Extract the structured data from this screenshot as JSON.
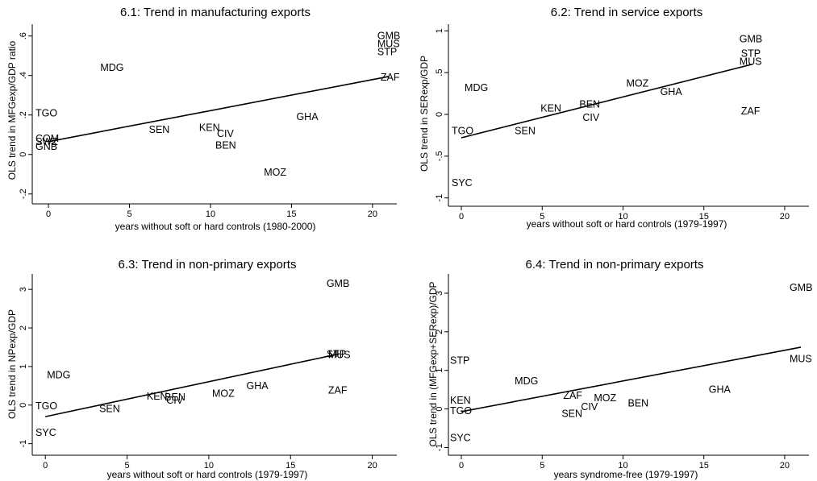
{
  "chart_data": [
    {
      "type": "scatter",
      "title": "6.1: Trend in manufacturing exports",
      "xlabel": "years without soft or hard controls (1980-2000)",
      "ylabel": "OLS trend in MFGexp/GDP ratio",
      "xlim": [
        -1,
        21.5
      ],
      "ylim": [
        -0.25,
        0.66
      ],
      "xticks": [
        {
          "v": 0,
          "label": "0"
        },
        {
          "v": 5,
          "label": "5"
        },
        {
          "v": 10,
          "label": "10"
        },
        {
          "v": 15,
          "label": "15"
        },
        {
          "v": 20,
          "label": "20"
        }
      ],
      "yticks": [
        {
          "v": -0.2,
          "label": "-.2"
        },
        {
          "v": 0,
          "label": "0"
        },
        {
          "v": 0.2,
          "label": ".2"
        },
        {
          "v": 0.4,
          "label": ".4"
        },
        {
          "v": 0.6,
          "label": ".6"
        }
      ],
      "points": [
        {
          "label": "TGO",
          "x": -0.8,
          "y": 0.21
        },
        {
          "label": "COM",
          "x": -0.8,
          "y": 0.08
        },
        {
          "label": "SWZ",
          "x": -0.8,
          "y": 0.065
        },
        {
          "label": "GNB",
          "x": -0.8,
          "y": 0.04
        },
        {
          "label": "MDG",
          "x": 3.2,
          "y": 0.44
        },
        {
          "label": "SEN",
          "x": 6.2,
          "y": 0.125
        },
        {
          "label": "KEN",
          "x": 9.3,
          "y": 0.135
        },
        {
          "label": "CIV",
          "x": 10.4,
          "y": 0.105
        },
        {
          "label": "BEN",
          "x": 10.3,
          "y": 0.045
        },
        {
          "label": "MOZ",
          "x": 13.3,
          "y": -0.09
        },
        {
          "label": "GHA",
          "x": 15.3,
          "y": 0.19
        },
        {
          "label": "GMB",
          "x": 20.3,
          "y": 0.6
        },
        {
          "label": "MUS",
          "x": 20.3,
          "y": 0.56
        },
        {
          "label": "STP",
          "x": 20.3,
          "y": 0.52
        },
        {
          "label": "ZAF",
          "x": 20.5,
          "y": 0.39
        }
      ],
      "fit": {
        "x": [
          0,
          21
        ],
        "y": [
          0.065,
          0.395
        ]
      }
    },
    {
      "type": "scatter",
      "title": "6.2: Trend in service exports",
      "xlabel": "years without soft or hard controls (1979-1997)",
      "ylabel": "OLS trend in SERexp/GDP",
      "xlim": [
        -0.8,
        21.5
      ],
      "ylim": [
        -1.1,
        1.08
      ],
      "xticks": [
        {
          "v": 0,
          "label": "0"
        },
        {
          "v": 5,
          "label": "5"
        },
        {
          "v": 10,
          "label": "10"
        },
        {
          "v": 15,
          "label": "15"
        },
        {
          "v": 20,
          "label": "20"
        }
      ],
      "yticks": [
        {
          "v": -1,
          "label": "-1"
        },
        {
          "v": -0.5,
          "label": "-.5"
        },
        {
          "v": 0,
          "label": "0"
        },
        {
          "v": 0.5,
          "label": ".5"
        },
        {
          "v": 1,
          "label": "1"
        }
      ],
      "points": [
        {
          "label": "MDG",
          "x": 0.2,
          "y": 0.32
        },
        {
          "label": "TGO",
          "x": -0.6,
          "y": -0.2
        },
        {
          "label": "SEN",
          "x": 3.3,
          "y": -0.2
        },
        {
          "label": "SYC",
          "x": -0.6,
          "y": -0.82
        },
        {
          "label": "KEN",
          "x": 4.9,
          "y": 0.07
        },
        {
          "label": "BEN",
          "x": 7.3,
          "y": 0.12
        },
        {
          "label": "CIV",
          "x": 7.5,
          "y": -0.04
        },
        {
          "label": "MOZ",
          "x": 10.2,
          "y": 0.37
        },
        {
          "label": "GHA",
          "x": 12.3,
          "y": 0.27
        },
        {
          "label": "GMB",
          "x": 17.2,
          "y": 0.9
        },
        {
          "label": "STP",
          "x": 17.3,
          "y": 0.73
        },
        {
          "label": "MUS",
          "x": 17.2,
          "y": 0.63
        },
        {
          "label": "ZAF",
          "x": 17.3,
          "y": 0.04
        }
      ],
      "fit": {
        "x": [
          0,
          18
        ],
        "y": [
          -0.28,
          0.6
        ]
      }
    },
    {
      "type": "scatter",
      "title": "6.3: Trend in non-primary exports",
      "xlabel": "years without soft or hard controls (1979-1997)",
      "ylabel": "OLS trend in NPexp/GDP",
      "xlim": [
        -0.8,
        21.5
      ],
      "ylim": [
        -1.3,
        3.4
      ],
      "xticks": [
        {
          "v": 0,
          "label": "0"
        },
        {
          "v": 5,
          "label": "5"
        },
        {
          "v": 10,
          "label": "10"
        },
        {
          "v": 15,
          "label": "15"
        },
        {
          "v": 20,
          "label": "20"
        }
      ],
      "yticks": [
        {
          "v": -1,
          "label": "-1"
        },
        {
          "v": 0,
          "label": "0"
        },
        {
          "v": 1,
          "label": "1"
        },
        {
          "v": 2,
          "label": "2"
        },
        {
          "v": 3,
          "label": "3"
        }
      ],
      "points": [
        {
          "label": "MDG",
          "x": 0.1,
          "y": 0.78
        },
        {
          "label": "TGO",
          "x": -0.6,
          "y": -0.03
        },
        {
          "label": "SYC",
          "x": -0.6,
          "y": -0.72
        },
        {
          "label": "SEN",
          "x": 3.3,
          "y": -0.1
        },
        {
          "label": "KEN",
          "x": 6.2,
          "y": 0.22
        },
        {
          "label": "BEN",
          "x": 7.3,
          "y": 0.2
        },
        {
          "label": "CIV",
          "x": 7.4,
          "y": 0.12
        },
        {
          "label": "MOZ",
          "x": 10.2,
          "y": 0.3
        },
        {
          "label": "GHA",
          "x": 12.3,
          "y": 0.5
        },
        {
          "label": "GMB",
          "x": 17.2,
          "y": 3.15
        },
        {
          "label": "STP",
          "x": 17.2,
          "y": 1.32
        },
        {
          "label": "MUS",
          "x": 17.3,
          "y": 1.3
        },
        {
          "label": "ZAF",
          "x": 17.3,
          "y": 0.38
        }
      ],
      "fit": {
        "x": [
          0,
          18
        ],
        "y": [
          -0.3,
          1.33
        ]
      }
    },
    {
      "type": "scatter",
      "title": "6.4: Trend in non-primary exports",
      "xlabel": "years syndrome-free (1979-1997)",
      "ylabel": "OLS trend in (MFGexp+SERexp)/GDP",
      "xlim": [
        -0.8,
        21.5
      ],
      "ylim": [
        -1.2,
        3.5
      ],
      "xticks": [
        {
          "v": 0,
          "label": "0"
        },
        {
          "v": 5,
          "label": "5"
        },
        {
          "v": 10,
          "label": "10"
        },
        {
          "v": 15,
          "label": "15"
        },
        {
          "v": 20,
          "label": "20"
        }
      ],
      "yticks": [
        {
          "v": -1,
          "label": "-1"
        },
        {
          "v": 0,
          "label": "0"
        },
        {
          "v": 1,
          "label": "1"
        },
        {
          "v": 2,
          "label": "2"
        },
        {
          "v": 3,
          "label": "3"
        }
      ],
      "points": [
        {
          "label": "STP",
          "x": -0.7,
          "y": 1.25
        },
        {
          "label": "MDG",
          "x": 3.3,
          "y": 0.72
        },
        {
          "label": "KEN",
          "x": -0.7,
          "y": 0.22
        },
        {
          "label": "TGO",
          "x": -0.7,
          "y": -0.05
        },
        {
          "label": "SYC",
          "x": -0.7,
          "y": -0.75
        },
        {
          "label": "ZAF",
          "x": 6.3,
          "y": 0.35
        },
        {
          "label": "MOZ",
          "x": 8.2,
          "y": 0.28
        },
        {
          "label": "CIV",
          "x": 7.4,
          "y": 0.05
        },
        {
          "label": "SEN",
          "x": 6.2,
          "y": -0.12
        },
        {
          "label": "BEN",
          "x": 10.3,
          "y": 0.15
        },
        {
          "label": "GHA",
          "x": 15.3,
          "y": 0.5
        },
        {
          "label": "GMB",
          "x": 20.3,
          "y": 3.15
        },
        {
          "label": "MUS",
          "x": 20.3,
          "y": 1.3
        }
      ],
      "fit": {
        "x": [
          0,
          21
        ],
        "y": [
          -0.07,
          1.6
        ]
      }
    }
  ]
}
